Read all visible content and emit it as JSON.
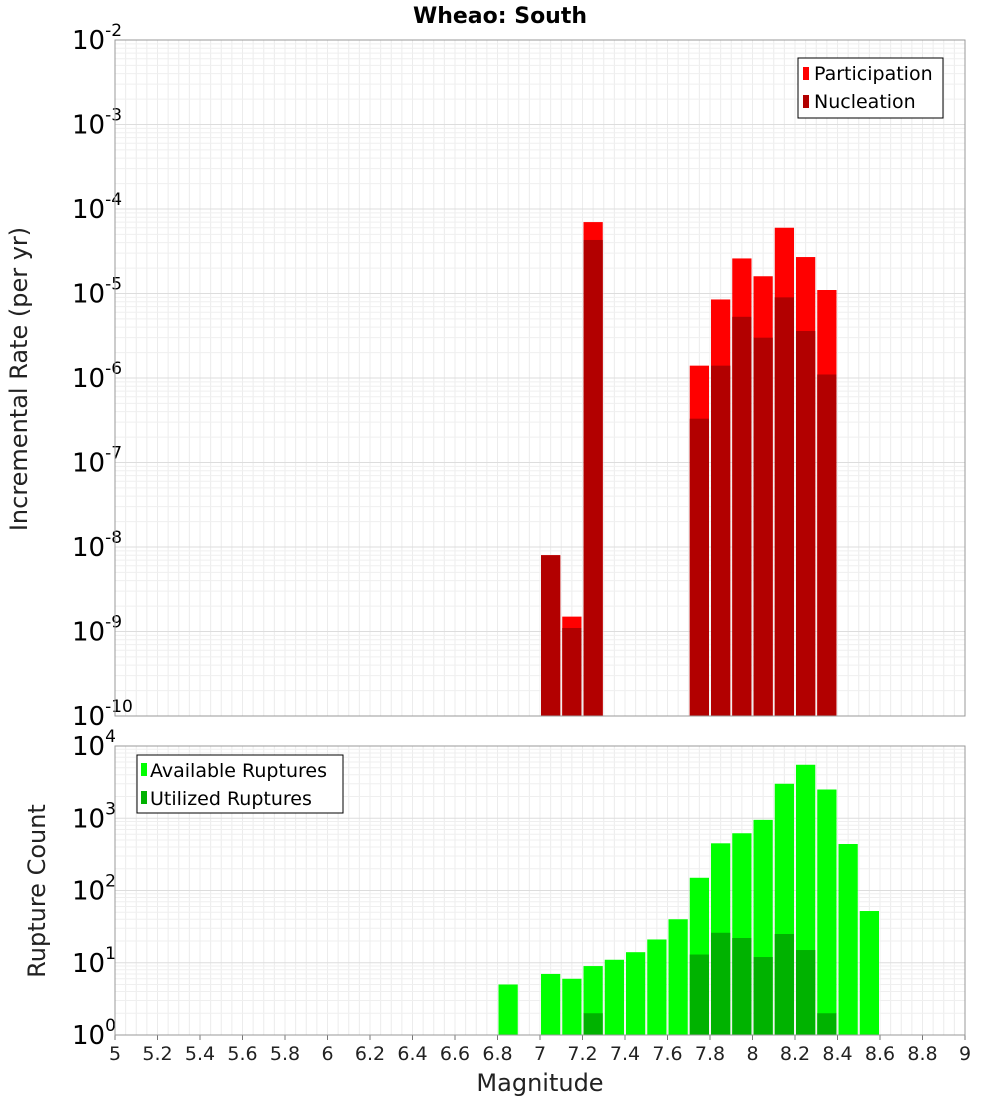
{
  "chart_data": [
    {
      "type": "bar",
      "title": "Wheao: South",
      "ylabel": "Incremental Rate (per yr)",
      "xlabel": "",
      "yscale": "log",
      "xlim": [
        5,
        9
      ],
      "ylim_exponents": [
        -10,
        -2
      ],
      "legend": {
        "placement": "top-right",
        "entries": [
          "Participation",
          "Nucleation"
        ]
      },
      "colors": {
        "Participation": "#ff0000",
        "Nucleation": "#b20000"
      },
      "bin_width": 0.1,
      "series": [
        {
          "name": "Participation",
          "x": [
            7.05,
            7.15,
            7.25,
            7.75,
            7.85,
            7.95,
            8.05,
            8.15,
            8.25,
            8.35
          ],
          "values": [
            8e-09,
            1.5e-09,
            7e-05,
            1.4e-06,
            8.5e-06,
            2.6e-05,
            1.6e-05,
            6e-05,
            2.7e-05,
            1.1e-05
          ]
        },
        {
          "name": "Nucleation",
          "x": [
            7.05,
            7.15,
            7.25,
            7.75,
            7.85,
            7.95,
            8.05,
            8.15,
            8.25,
            8.35
          ],
          "values": [
            8e-09,
            1.1e-09,
            4.3e-05,
            3.3e-07,
            1.4e-06,
            5.3e-06,
            3e-06,
            9e-06,
            3.6e-06,
            1.1e-06
          ]
        }
      ]
    },
    {
      "type": "bar",
      "title": "",
      "ylabel": "Rupture Count",
      "xlabel": "Magnitude",
      "yscale": "log",
      "xlim": [
        5,
        9
      ],
      "ylim_exponents": [
        0,
        4
      ],
      "x_ticks": [
        "5",
        "5.2",
        "5.4",
        "5.6",
        "5.8",
        "6",
        "6.2",
        "6.4",
        "6.6",
        "6.8",
        "7",
        "7.2",
        "7.4",
        "7.6",
        "7.8",
        "8",
        "8.2",
        "8.4",
        "8.6",
        "8.8",
        "9"
      ],
      "legend": {
        "placement": "top-left",
        "entries": [
          "Available Ruptures",
          "Utilized Ruptures"
        ]
      },
      "colors": {
        "Available Ruptures": "#00ff00",
        "Utilized Ruptures": "#00b200"
      },
      "bin_width": 0.1,
      "series": [
        {
          "name": "Available Ruptures",
          "x": [
            6.85,
            7.05,
            7.15,
            7.25,
            7.35,
            7.45,
            7.55,
            7.65,
            7.75,
            7.85,
            7.95,
            8.05,
            8.15,
            8.25,
            8.35,
            8.45,
            8.55,
            8.65
          ],
          "values": [
            5,
            7,
            6,
            9,
            11,
            14,
            21,
            40,
            150,
            450,
            620,
            950,
            3000,
            5500,
            2500,
            440,
            52,
            1
          ]
        },
        {
          "name": "Utilized Ruptures",
          "x": [
            7.05,
            7.15,
            7.25,
            7.75,
            7.85,
            7.95,
            8.05,
            8.15,
            8.25,
            8.35
          ],
          "values": [
            1,
            1,
            2,
            13,
            26,
            22,
            12,
            25,
            15,
            2
          ]
        }
      ]
    }
  ]
}
